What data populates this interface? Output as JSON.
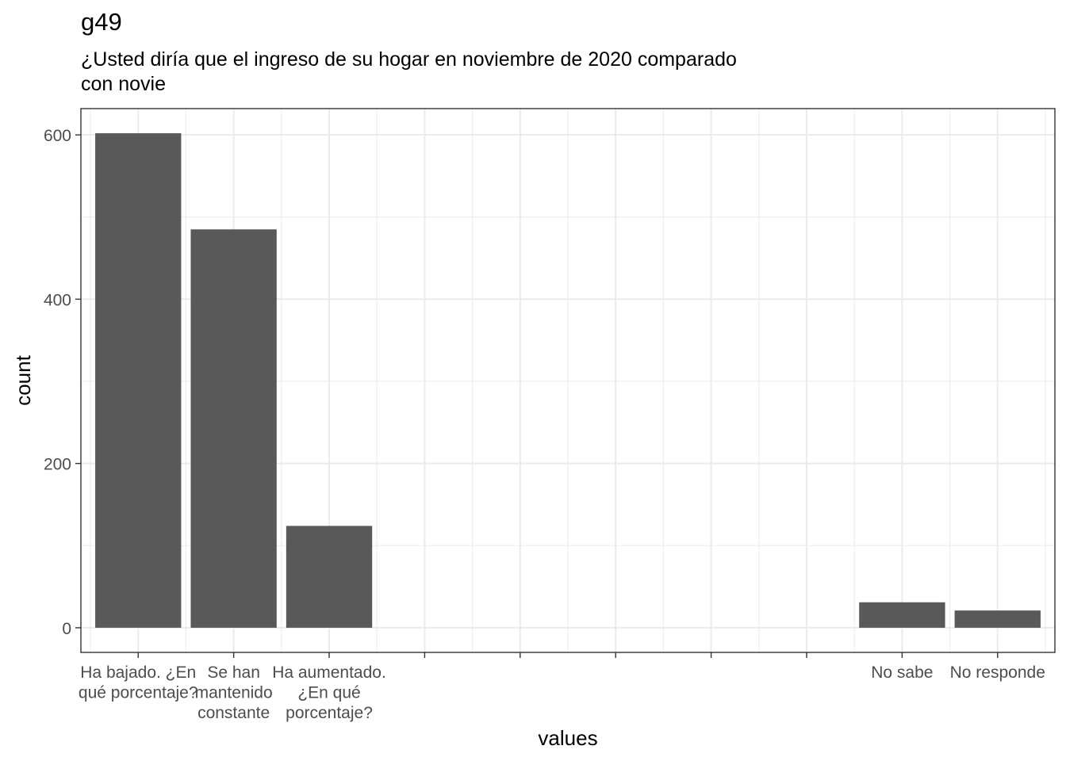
{
  "chart_data": {
    "type": "bar",
    "title": "g49",
    "subtitle": "¿Usted diría que el ingreso de su hogar en noviembre de 2020 comparado\ncon novie",
    "xlabel": "values",
    "ylabel": "count",
    "categories": [
      "Ha bajado. ¿En\nqué porcentaje?",
      "Se han\nmantenido\nconstante",
      "Ha aumentado.\n¿En qué\nporcentaje?",
      "",
      "",
      "",
      "",
      "",
      "No sabe",
      "No responde"
    ],
    "values": [
      602,
      485,
      124,
      null,
      null,
      null,
      null,
      null,
      31,
      21
    ],
    "ylim": [
      -30,
      632
    ],
    "yticks": [
      0,
      200,
      400,
      600
    ],
    "bar_color": "#595959",
    "grid": true,
    "theme": "bw"
  }
}
